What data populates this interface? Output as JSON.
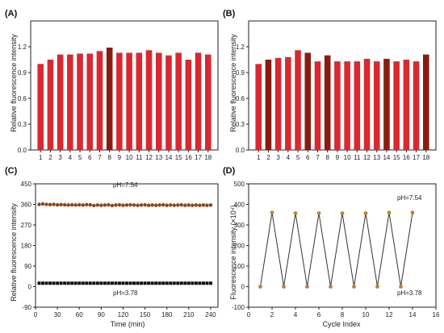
{
  "chart_data": [
    {
      "panel": "(A)",
      "type": "bar",
      "ylabel": "Relative fluorescence intensity",
      "xlabel": "",
      "ylim": [
        0,
        1.5
      ],
      "yticks": [
        0.0,
        0.3,
        0.6,
        0.9,
        1.2
      ],
      "categories": [
        "1",
        "2",
        "3",
        "4",
        "5",
        "6",
        "7",
        "8",
        "9",
        "10",
        "11",
        "12",
        "13",
        "14",
        "15",
        "16",
        "17",
        "18"
      ],
      "values": [
        1.0,
        1.05,
        1.11,
        1.11,
        1.12,
        1.12,
        1.15,
        1.19,
        1.13,
        1.13,
        1.13,
        1.16,
        1.13,
        1.1,
        1.13,
        1.05,
        1.13,
        1.11
      ],
      "colors": [
        "#d9282f",
        "#d9282f",
        "#d9282f",
        "#d9282f",
        "#d9282f",
        "#d9282f",
        "#d9282f",
        "#8b1a10",
        "#d9282f",
        "#d9282f",
        "#d9282f",
        "#d9282f",
        "#d9282f",
        "#d9282f",
        "#d9282f",
        "#d9282f",
        "#d9282f",
        "#d9282f"
      ]
    },
    {
      "panel": "(B)",
      "type": "bar",
      "ylabel": "Relative fluorescence intensity",
      "xlabel": "",
      "ylim": [
        0,
        1.5
      ],
      "yticks": [
        0.0,
        0.3,
        0.6,
        0.9,
        1.2
      ],
      "categories": [
        "1",
        "2",
        "3",
        "4",
        "5",
        "6",
        "7",
        "8",
        "9",
        "10",
        "11",
        "12",
        "13",
        "14",
        "15",
        "16",
        "17",
        "18"
      ],
      "values": [
        1.0,
        1.05,
        1.07,
        1.08,
        1.16,
        1.13,
        1.03,
        1.1,
        1.03,
        1.03,
        1.03,
        1.06,
        1.03,
        1.06,
        1.03,
        1.05,
        1.03,
        1.11
      ],
      "colors": [
        "#d9282f",
        "#8b1a10",
        "#d9282f",
        "#d9282f",
        "#d9282f",
        "#8b1a10",
        "#d9282f",
        "#8b1a10",
        "#d9282f",
        "#d9282f",
        "#d9282f",
        "#d9282f",
        "#d9282f",
        "#8b1a10",
        "#d9282f",
        "#d9282f",
        "#d9282f",
        "#8b1a10"
      ]
    },
    {
      "panel": "(C)",
      "type": "scatter",
      "xlabel": "Time (min)",
      "ylabel": "Relative fluorescence intensity",
      "xlim": [
        0,
        250
      ],
      "ylim": [
        -90,
        450
      ],
      "xticks": [
        0,
        30,
        60,
        90,
        120,
        150,
        180,
        210,
        240
      ],
      "yticks": [
        -90,
        0,
        90,
        180,
        270,
        360,
        450
      ],
      "annotations": [
        "pH=7.54",
        "pH=3.78"
      ],
      "series": [
        {
          "color": "#8b4513",
          "x": [
            5,
            10,
            15,
            20,
            25,
            30,
            35,
            40,
            45,
            50,
            55,
            60,
            65,
            70,
            75,
            80,
            85,
            90,
            95,
            100,
            105,
            110,
            115,
            120,
            125,
            130,
            135,
            140,
            145,
            150,
            155,
            160,
            165,
            170,
            175,
            180,
            185,
            190,
            195,
            200,
            205,
            210,
            215,
            220,
            225,
            230,
            235,
            240
          ],
          "y": [
            360,
            362,
            360,
            359,
            360,
            358,
            359,
            358,
            357,
            358,
            357,
            358,
            357,
            359,
            358,
            355,
            357,
            356,
            357,
            358,
            355,
            357,
            358,
            356,
            357,
            358,
            357,
            356,
            357,
            358,
            356,
            357,
            356,
            357,
            358,
            356,
            357,
            356,
            357,
            358,
            356,
            357,
            356,
            357,
            356,
            357,
            356,
            357
          ]
        },
        {
          "color": "#111111",
          "x": [
            5,
            10,
            15,
            20,
            25,
            30,
            35,
            40,
            45,
            50,
            55,
            60,
            65,
            70,
            75,
            80,
            85,
            90,
            95,
            100,
            105,
            110,
            115,
            120,
            125,
            130,
            135,
            140,
            145,
            150,
            155,
            160,
            165,
            170,
            175,
            180,
            185,
            190,
            195,
            200,
            205,
            210,
            215,
            220,
            225,
            230,
            235,
            240
          ],
          "y": [
            15,
            15,
            15,
            15,
            15,
            15,
            15,
            15,
            15,
            15,
            15,
            15,
            15,
            15,
            15,
            15,
            15,
            15,
            15,
            15,
            15,
            15,
            15,
            15,
            15,
            15,
            15,
            15,
            15,
            15,
            15,
            15,
            15,
            15,
            15,
            15,
            15,
            15,
            15,
            15,
            15,
            15,
            15,
            15,
            15,
            15,
            15,
            15
          ]
        }
      ]
    },
    {
      "panel": "(D)",
      "type": "line",
      "xlabel": "Cycle Index",
      "ylabel": "Fluorescence intensity (×10⁴)",
      "xlim": [
        0,
        16
      ],
      "ylim": [
        -100,
        500
      ],
      "xticks": [
        0,
        2,
        4,
        6,
        8,
        10,
        12,
        14,
        16
      ],
      "yticks": [
        -100,
        0,
        100,
        200,
        300,
        400,
        500
      ],
      "annotations": [
        "pH=7.54",
        "pH=3.78"
      ],
      "series": [
        {
          "color": "#333333",
          "marker_color": "#b8862b",
          "x": [
            1,
            2,
            3,
            4,
            5,
            6,
            7,
            8,
            9,
            10,
            11,
            12,
            13,
            14
          ],
          "y": [
            0,
            360,
            0,
            357,
            0,
            357,
            0,
            357,
            0,
            357,
            0,
            360,
            0,
            360
          ]
        }
      ]
    }
  ],
  "labels": {
    "panel_a": "(A)",
    "panel_b": "(B)",
    "panel_c": "(C)",
    "panel_d": "(D)",
    "ylabel_a": "Relative fluorescence intensity",
    "ylabel_b": "Relative fluorescence intensity",
    "ylabel_c": "Relative fluorescence intensity",
    "ylabel_d": "Fluorescence intensity (×10⁴)",
    "xlabel_c": "Time (min)",
    "xlabel_d": "Cycle Index",
    "annot_c_high": "pH=7.54",
    "annot_c_low": "pH=3.78",
    "annot_d_high": "pH=7.54",
    "annot_d_low": "pH=3.78"
  }
}
